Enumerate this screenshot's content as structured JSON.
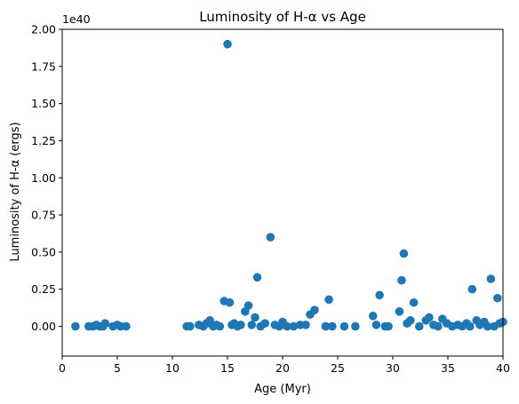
{
  "chart_data": {
    "type": "scatter",
    "title": "Luminosity of H-α vs Age",
    "xlabel": "Age (Myr)",
    "ylabel": "Luminosity of H-α (ergs)",
    "y_scale_label": "1e40",
    "xlim": [
      0,
      40
    ],
    "ylim": [
      -0.2,
      2.0
    ],
    "x_ticks": [
      0,
      5,
      10,
      15,
      20,
      25,
      30,
      35,
      40
    ],
    "x_tick_labels": [
      "0",
      "5",
      "10",
      "15",
      "20",
      "25",
      "30",
      "35",
      "40"
    ],
    "y_ticks": [
      0.0,
      0.25,
      0.5,
      0.75,
      1.0,
      1.25,
      1.5,
      1.75,
      2.0
    ],
    "y_tick_labels": [
      "0.00",
      "0.25",
      "0.50",
      "0.75",
      "1.00",
      "1.25",
      "1.50",
      "1.75",
      "2.00"
    ],
    "grid": false,
    "marker_color": "#1f77b4",
    "points": [
      {
        "x": 1.2,
        "y": 0.0
      },
      {
        "x": 2.4,
        "y": 0.0
      },
      {
        "x": 2.8,
        "y": 0.0
      },
      {
        "x": 3.1,
        "y": 0.01
      },
      {
        "x": 3.4,
        "y": 0.0
      },
      {
        "x": 3.7,
        "y": 0.0
      },
      {
        "x": 3.9,
        "y": 0.02
      },
      {
        "x": 4.6,
        "y": 0.0
      },
      {
        "x": 5.0,
        "y": 0.01
      },
      {
        "x": 5.3,
        "y": 0.0
      },
      {
        "x": 5.8,
        "y": 0.0
      },
      {
        "x": 11.3,
        "y": 0.0
      },
      {
        "x": 11.6,
        "y": 0.0
      },
      {
        "x": 12.4,
        "y": 0.01
      },
      {
        "x": 12.8,
        "y": 0.0
      },
      {
        "x": 13.1,
        "y": 0.02
      },
      {
        "x": 13.4,
        "y": 0.04
      },
      {
        "x": 13.7,
        "y": 0.0
      },
      {
        "x": 14.0,
        "y": 0.01
      },
      {
        "x": 14.3,
        "y": 0.0
      },
      {
        "x": 14.7,
        "y": 0.17
      },
      {
        "x": 15.0,
        "y": 1.9
      },
      {
        "x": 15.2,
        "y": 0.16
      },
      {
        "x": 15.4,
        "y": 0.01
      },
      {
        "x": 15.6,
        "y": 0.02
      },
      {
        "x": 15.9,
        "y": 0.0
      },
      {
        "x": 16.2,
        "y": 0.01
      },
      {
        "x": 16.6,
        "y": 0.1
      },
      {
        "x": 16.9,
        "y": 0.14
      },
      {
        "x": 17.2,
        "y": 0.01
      },
      {
        "x": 17.5,
        "y": 0.06
      },
      {
        "x": 17.7,
        "y": 0.33
      },
      {
        "x": 18.0,
        "y": 0.0
      },
      {
        "x": 18.4,
        "y": 0.02
      },
      {
        "x": 18.9,
        "y": 0.6
      },
      {
        "x": 19.3,
        "y": 0.01
      },
      {
        "x": 19.7,
        "y": 0.0
      },
      {
        "x": 20.0,
        "y": 0.03
      },
      {
        "x": 20.4,
        "y": 0.0
      },
      {
        "x": 21.0,
        "y": 0.0
      },
      {
        "x": 21.6,
        "y": 0.01
      },
      {
        "x": 22.1,
        "y": 0.01
      },
      {
        "x": 22.5,
        "y": 0.08
      },
      {
        "x": 22.9,
        "y": 0.11
      },
      {
        "x": 23.9,
        "y": 0.0
      },
      {
        "x": 24.2,
        "y": 0.18
      },
      {
        "x": 24.5,
        "y": 0.0
      },
      {
        "x": 25.6,
        "y": 0.0
      },
      {
        "x": 26.6,
        "y": 0.0
      },
      {
        "x": 28.2,
        "y": 0.07
      },
      {
        "x": 28.5,
        "y": 0.01
      },
      {
        "x": 28.8,
        "y": 0.21
      },
      {
        "x": 29.3,
        "y": 0.0
      },
      {
        "x": 29.6,
        "y": 0.0
      },
      {
        "x": 30.6,
        "y": 0.1
      },
      {
        "x": 30.8,
        "y": 0.31
      },
      {
        "x": 31.0,
        "y": 0.49
      },
      {
        "x": 31.3,
        "y": 0.02
      },
      {
        "x": 31.6,
        "y": 0.04
      },
      {
        "x": 31.9,
        "y": 0.16
      },
      {
        "x": 32.4,
        "y": 0.0
      },
      {
        "x": 33.0,
        "y": 0.04
      },
      {
        "x": 33.3,
        "y": 0.06
      },
      {
        "x": 33.7,
        "y": 0.01
      },
      {
        "x": 34.1,
        "y": 0.0
      },
      {
        "x": 34.5,
        "y": 0.05
      },
      {
        "x": 34.9,
        "y": 0.02
      },
      {
        "x": 35.4,
        "y": 0.0
      },
      {
        "x": 35.9,
        "y": 0.01
      },
      {
        "x": 36.3,
        "y": 0.0
      },
      {
        "x": 36.7,
        "y": 0.02
      },
      {
        "x": 37.0,
        "y": 0.0
      },
      {
        "x": 37.2,
        "y": 0.25
      },
      {
        "x": 37.6,
        "y": 0.04
      },
      {
        "x": 37.9,
        "y": 0.01
      },
      {
        "x": 38.3,
        "y": 0.03
      },
      {
        "x": 38.6,
        "y": 0.0
      },
      {
        "x": 38.9,
        "y": 0.32
      },
      {
        "x": 39.2,
        "y": 0.0
      },
      {
        "x": 39.5,
        "y": 0.19
      },
      {
        "x": 39.7,
        "y": 0.02
      },
      {
        "x": 40.0,
        "y": 0.03
      }
    ]
  }
}
